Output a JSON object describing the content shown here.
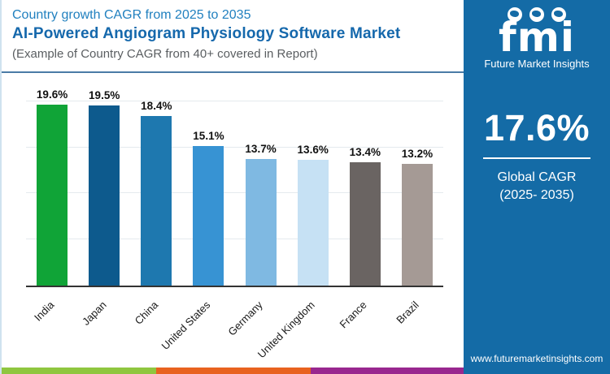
{
  "header": {
    "subtitle": "Country growth CAGR from 2025 to 2035",
    "title": "AI-Powered Angiogram Physiology Software Market",
    "note": "(Example of Country CAGR from 40+ covered in Report)"
  },
  "sidebar": {
    "background_color": "#146ba6",
    "logo": {
      "text": "fmi",
      "tagline": "Future Market Insights",
      "icons": [
        "globe-americas-icon",
        "globe-europe-icon",
        "globe-asia-icon"
      ]
    },
    "global_cagr": {
      "value": "17.6%",
      "label_line1": "Global CAGR",
      "label_line2": "(2025- 2035)"
    },
    "website": "www.futuremarketinsights.com"
  },
  "chart_data": {
    "type": "bar",
    "title": "Country growth CAGR from 2025 to 2035",
    "xlabel": "",
    "ylabel": "",
    "categories": [
      "India",
      "Japan",
      "China",
      "United States",
      "Germany",
      "United Kingdom",
      "France",
      "Brazil"
    ],
    "values": [
      19.6,
      19.5,
      18.4,
      15.1,
      13.7,
      13.6,
      13.4,
      13.2
    ],
    "labels": [
      "19.6%",
      "19.5%",
      "18.4%",
      "15.1%",
      "13.7%",
      "13.6%",
      "13.4%",
      "13.2%"
    ],
    "bar_colors": [
      "#10a437",
      "#0d5a8d",
      "#1e78af",
      "#3793d3",
      "#7fb9e2",
      "#c6e1f4",
      "#6a6462",
      "#a59a95"
    ],
    "ylim": [
      0,
      22
    ],
    "gridlines": [
      5,
      10,
      15,
      20
    ],
    "grid": "horizontal",
    "legend_position": "none",
    "x_tick_rotation": -45
  },
  "footer_stripe": {
    "colors": [
      "#8fc63f",
      "#e8621f",
      "#99278f"
    ]
  }
}
